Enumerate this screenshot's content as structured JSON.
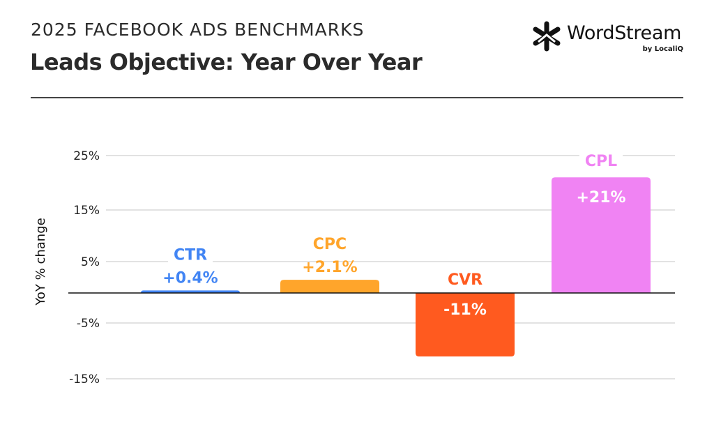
{
  "header": {
    "kicker": "2025 FACEBOOK ADS BENCHMARKS",
    "title": "Leads Objective: Year Over Year"
  },
  "logo": {
    "name": "WordStream",
    "sub": "by LocaliQ",
    "icon": "wordstream-asterisk-icon"
  },
  "chart_data": {
    "type": "bar",
    "title": "Leads Objective: Year Over Year",
    "xlabel": "",
    "ylabel": "YoY % change",
    "categories": [
      "CTR",
      "CPC",
      "CVR",
      "CPL"
    ],
    "values": [
      0.4,
      2.1,
      -11,
      21
    ],
    "value_labels": [
      "+0.4%",
      "+2.1%",
      "-11%",
      "+21%"
    ],
    "colors": [
      "#4285f4",
      "#ffa52b",
      "#ff5a1f",
      "#f083f3"
    ],
    "yticks": [
      25,
      15,
      5,
      -5,
      -15
    ],
    "ytick_labels": [
      "25%",
      "15%",
      "5%",
      "-5%",
      "-15%"
    ],
    "ylim": [
      -15,
      25
    ],
    "grid": true,
    "legend": "none"
  }
}
